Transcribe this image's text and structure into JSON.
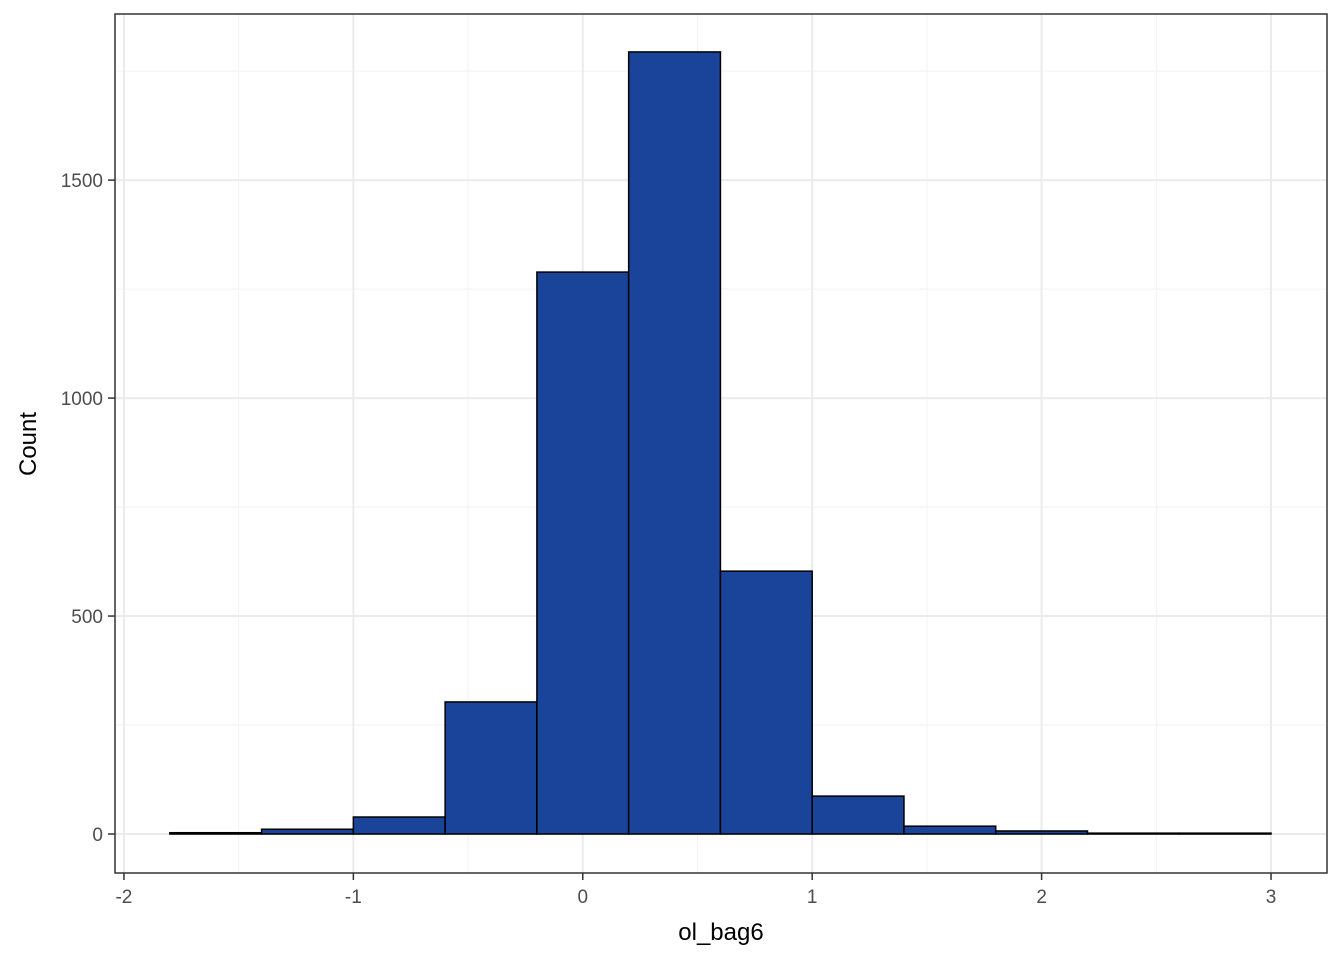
{
  "chart_data": {
    "type": "histogram",
    "x_label": "ol_bag6",
    "y_label": "Count",
    "bins": [
      -1.8,
      -1.4,
      -1.0,
      -0.6,
      -0.2,
      0.2,
      0.6,
      1.0,
      1.4,
      1.8,
      2.2,
      2.6,
      3.0
    ],
    "values": [
      3,
      11,
      39,
      303,
      1289,
      1794,
      603,
      87,
      18,
      7,
      2,
      2
    ],
    "color": "#1a4499",
    "xlim": [
      -2.039,
      3.244
    ],
    "ylim": [
      -89.4,
      1881
    ],
    "xticks": [
      -2,
      -1,
      0,
      1,
      2,
      3
    ],
    "yticks": [
      0,
      500,
      1000,
      1500
    ],
    "x_minor_ticks": [
      -1.5,
      -0.5,
      0.5,
      1.5,
      2.5
    ],
    "y_minor_ticks": [
      250,
      750,
      1250,
      1750
    ],
    "grid": true
  }
}
